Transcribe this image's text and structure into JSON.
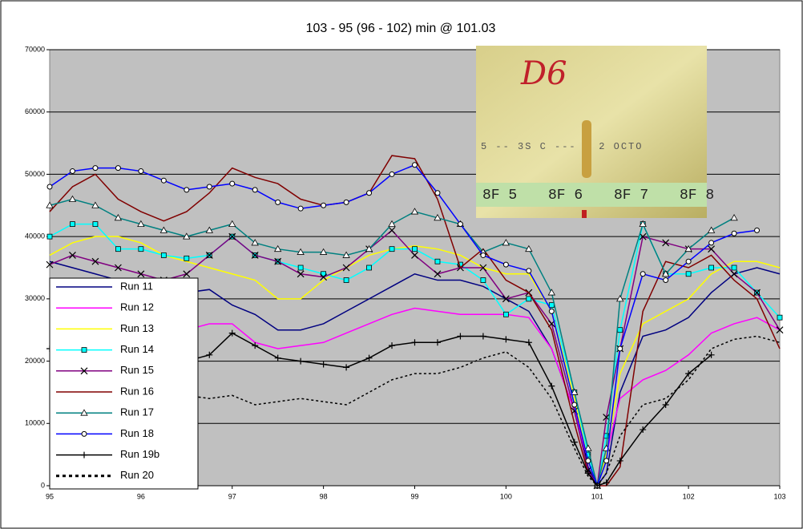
{
  "chart_data": {
    "type": "line",
    "title": "103 - 95 (96 - 102) min @ 101.03",
    "x": [
      95,
      95.25,
      95.5,
      95.75,
      96,
      96.25,
      96.5,
      96.75,
      97,
      97.25,
      97.5,
      97.75,
      98,
      98.25,
      98.5,
      98.75,
      99,
      99.25,
      99.5,
      99.75,
      100,
      100.25,
      100.5,
      100.75,
      100.9,
      101,
      101.1,
      101.25,
      101.5,
      101.75,
      102,
      102.25,
      102.5,
      102.75,
      103
    ],
    "xlim": [
      95,
      103
    ],
    "xticks": [
      95,
      96,
      97,
      98,
      99,
      100,
      101,
      102,
      103
    ],
    "ylim": [
      0,
      70000
    ],
    "yticks": [
      0,
      10000,
      20000,
      30000,
      40000,
      50000,
      60000,
      70000
    ],
    "grid": true,
    "legend": "lower left",
    "series": [
      {
        "name": "Run 11",
        "color": "#000080",
        "values": [
          36000,
          35000,
          34000,
          33000,
          32000,
          30000,
          31000,
          31500,
          29000,
          27500,
          25000,
          25000,
          26000,
          28000,
          30000,
          32000,
          34000,
          33000,
          33000,
          32000,
          30000,
          28000,
          22000,
          12000,
          3000,
          0,
          2000,
          15000,
          24000,
          25000,
          27000,
          31000,
          34000,
          35000,
          34000
        ]
      },
      {
        "name": "Run 12",
        "color": "#ff00ff",
        "values": [
          24000,
          24000,
          24500,
          24500,
          24500,
          24500,
          25000,
          26000,
          26000,
          23000,
          22000,
          22500,
          23000,
          24500,
          26000,
          27500,
          28500,
          28000,
          27500,
          27500,
          27500,
          27000,
          22000,
          12000,
          4000,
          0,
          5000,
          14000,
          17000,
          18500,
          21000,
          24500,
          26000,
          27000,
          25000
        ]
      },
      {
        "name": "Run 13",
        "color": "#ffff00",
        "values": [
          37000,
          39000,
          40000,
          40000,
          39000,
          37000,
          36000,
          35000,
          34000,
          33000,
          30000,
          30000,
          33000,
          35000,
          37000,
          38000,
          38500,
          38000,
          37000,
          35000,
          34000,
          34000,
          28000,
          14000,
          4000,
          0,
          5000,
          18000,
          26000,
          28000,
          30000,
          34000,
          36000,
          36000,
          35000
        ]
      },
      {
        "name": "Run 14",
        "color": "#00ffff",
        "marker": "square",
        "values": [
          40000,
          42000,
          42000,
          38000,
          38000,
          37000,
          36500,
          37000,
          40000,
          37000,
          36000,
          35000,
          34000,
          33000,
          35000,
          38000,
          38000,
          36000,
          35500,
          33000,
          27500,
          30000,
          29000,
          15000,
          5000,
          0,
          8000,
          25000,
          42000,
          34000,
          34000,
          35000,
          35000,
          31000,
          27000
        ]
      },
      {
        "name": "Run 15",
        "color": "#800080",
        "marker": "x",
        "values": [
          35500,
          37000,
          36000,
          35000,
          34000,
          33000,
          34000,
          37000,
          40000,
          37000,
          36000,
          34000,
          33500,
          35000,
          38000,
          41000,
          37000,
          34000,
          35000,
          35000,
          30000,
          31000,
          26000,
          12000,
          2500,
          0,
          11000,
          22000,
          40000,
          39000,
          38000,
          38000,
          34000,
          31000,
          25000
        ]
      },
      {
        "name": "Run 16",
        "color": "#800000",
        "values": [
          44000,
          48000,
          50000,
          46000,
          44000,
          42500,
          44000,
          47000,
          51000,
          49500,
          48500,
          46000,
          45000,
          45500,
          47000,
          53000,
          52500,
          46000,
          35000,
          38000,
          33000,
          31000,
          25000,
          10000,
          2000,
          0,
          0,
          3000,
          28000,
          36000,
          35000,
          37000,
          33000,
          30000,
          22000
        ]
      },
      {
        "name": "Run 17",
        "color": "#008080",
        "marker": "triangle",
        "values": [
          45000,
          46000,
          45000,
          43000,
          42000,
          41000,
          40000,
          41000,
          42000,
          39000,
          38000,
          37500,
          37500,
          37000,
          38000,
          42000,
          44000,
          43000,
          42000,
          37500,
          39000,
          38000,
          31000,
          15000,
          6000,
          0,
          6000,
          30000,
          42000,
          34000,
          38000,
          41000,
          43000,
          null,
          null
        ]
      },
      {
        "name": "Run 18",
        "color": "#0000ff",
        "marker": "circle",
        "values": [
          48000,
          50500,
          51000,
          51000,
          50500,
          49000,
          47500,
          48000,
          48500,
          47500,
          45500,
          44500,
          45000,
          45500,
          47000,
          50000,
          51500,
          47000,
          42000,
          37000,
          35500,
          34500,
          28000,
          13000,
          4000,
          0,
          4000,
          22000,
          34000,
          33000,
          36000,
          39000,
          40500,
          41000,
          null
        ]
      },
      {
        "name": "Run 19b",
        "color": "#000000",
        "marker": "plus",
        "values": [
          22000,
          21000,
          21000,
          21000,
          21000,
          20500,
          20000,
          21000,
          24500,
          22500,
          20500,
          20000,
          19500,
          19000,
          20500,
          22500,
          23000,
          23000,
          24000,
          24000,
          23500,
          23000,
          16000,
          7000,
          2000,
          0,
          500,
          4000,
          9000,
          13000,
          18000,
          21000,
          null,
          null,
          null
        ]
      },
      {
        "name": "Run 20",
        "color": "#000000",
        "line_style": "dotted",
        "values": [
          14000,
          14500,
          14500,
          14500,
          14500,
          14500,
          14500,
          14000,
          14500,
          13000,
          13500,
          14000,
          13500,
          13000,
          15000,
          17000,
          18000,
          18000,
          19000,
          20500,
          21500,
          19000,
          14000,
          6000,
          1500,
          0,
          2000,
          8000,
          13000,
          14000,
          17000,
          22000,
          23500,
          24000,
          23000
        ]
      }
    ]
  },
  "photo": {
    "label": "D6",
    "tape_text": "5 -- 3S C --- 1 2 OCTO",
    "ruler_labels": [
      "8F 5",
      "8F 6",
      "8F 7",
      "8F 8"
    ]
  }
}
